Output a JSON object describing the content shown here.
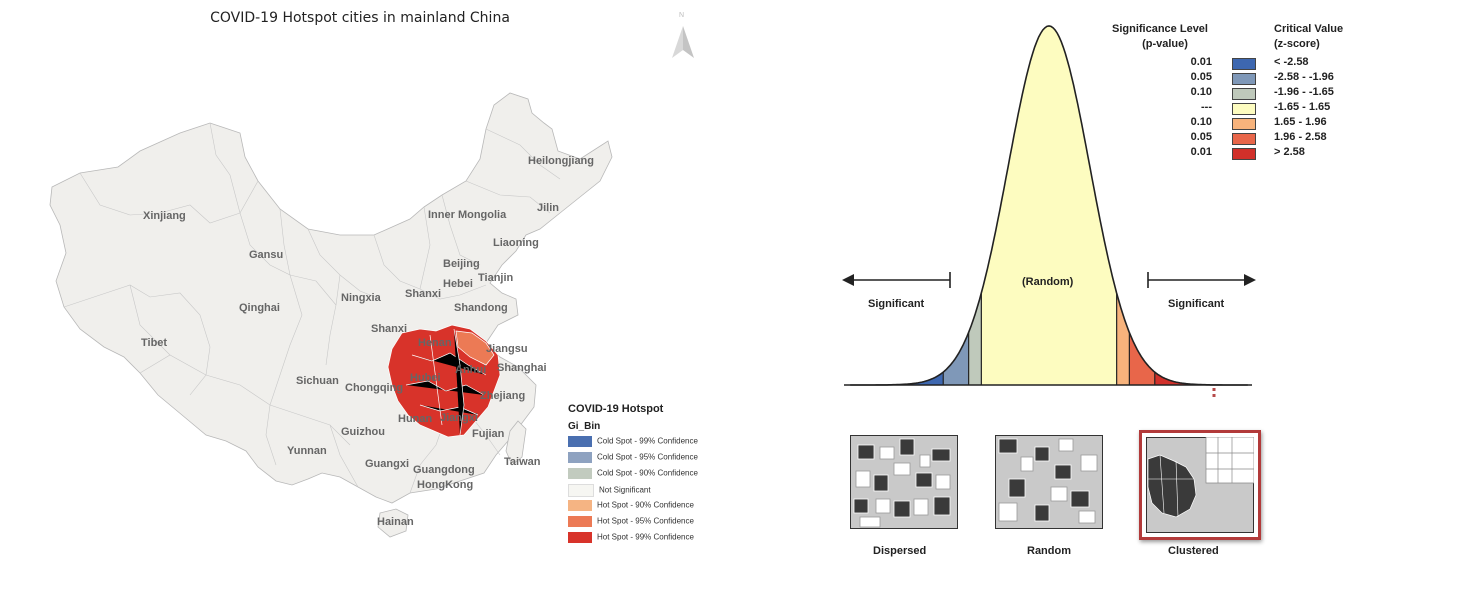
{
  "map": {
    "title": "COVID-19 Hotspot cities in mainland China",
    "north_label": "N",
    "places": {
      "heilongjiang": "Heilongjiang",
      "xinjiang": "Xinjiang",
      "inner_mongolia": "Inner Mongolia",
      "jilin": "Jilin",
      "liaoning": "Liaoning",
      "gansu": "Gansu",
      "beijing": "Beijing",
      "hebei": "Hebei",
      "tianjin": "Tianjin",
      "ningxia": "Ningxia",
      "shanxi_e": "Shanxi",
      "shandong": "Shandong",
      "qinghai": "Qinghai",
      "shanxi_w": "Shanxi",
      "henan": "Henan",
      "jiangsu": "Jiangsu",
      "tibet": "Tibet",
      "hubei": "Hubei",
      "anhui": "Anhui",
      "shanghai": "Shanghai",
      "chongqing": "Chongqing",
      "sichuan": "Sichuan",
      "zhejiang": "Zhejiang",
      "hunan": "Hunan",
      "jiangxi": "Jiangxi",
      "guizhou": "Guizhou",
      "fujian": "Fujian",
      "yunnan": "Yunnan",
      "taiwan": "Taiwan",
      "guangxi": "Guangxi",
      "guangdong": "Guangdong",
      "hongkong": "HongKong",
      "hainan": "Hainan"
    },
    "legend": {
      "title": "COVID-19 Hotspot",
      "field": "Gi_Bin",
      "items": [
        {
          "label": "Cold Spot - 99% Confidence",
          "color": "#4a6fb0"
        },
        {
          "label": "Cold Spot - 95% Confidence",
          "color": "#8ea2c0"
        },
        {
          "label": "Cold Spot - 90% Confidence",
          "color": "#c2cbbf"
        },
        {
          "label": "Not Significant",
          "color": "#f6f6f2"
        },
        {
          "label": "Hot Spot - 90% Confidence",
          "color": "#f5b483"
        },
        {
          "label": "Hot Spot - 95% Confidence",
          "color": "#ec7a55"
        },
        {
          "label": "Hot Spot - 99% Confidence",
          "color": "#d8332a"
        }
      ]
    }
  },
  "distribution": {
    "sig_header_1": "Significance Level",
    "sig_header_2": "(p-value)",
    "crit_header_1": "Critical Value",
    "crit_header_2": "(z-score)",
    "rows": [
      {
        "p": "0.01",
        "z": "< -2.58",
        "color": "#3d67b0"
      },
      {
        "p": "0.05",
        "z": "-2.58 - -1.96",
        "color": "#7f98b8"
      },
      {
        "p": "0.10",
        "z": "-1.96 - -1.65",
        "color": "#bfc9bb"
      },
      {
        "p": "---",
        "z": "-1.65 - 1.65",
        "color": "#fdfcc0"
      },
      {
        "p": "0.10",
        "z": "1.65 - 1.96",
        "color": "#f7b37c"
      },
      {
        "p": "0.05",
        "z": "1.96 - 2.58",
        "color": "#e8664a"
      },
      {
        "p": "0.01",
        "z": "> 2.58",
        "color": "#d1302a"
      }
    ],
    "label_random": "(Random)",
    "label_sig_left": "Significant",
    "label_sig_right": "Significant",
    "patterns": [
      "Dispersed",
      "Random",
      "Clustered"
    ]
  }
}
